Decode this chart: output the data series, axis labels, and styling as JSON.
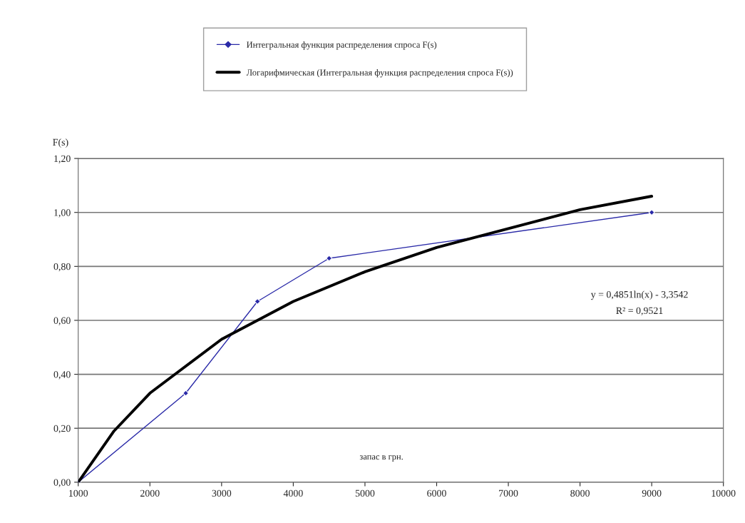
{
  "chart_data": {
    "type": "line",
    "ylabel": "F(s)",
    "xlabel": "запас в грн.",
    "series": [
      {
        "name": "Интегральная функция распределения спроса F(s)",
        "color": "#2a2aa8",
        "marker": "diamond",
        "x": [
          1000,
          2500,
          3500,
          4500,
          9000
        ],
        "values": [
          0,
          0.33,
          0.67,
          0.83,
          1.0
        ]
      },
      {
        "name": "Логарифмическая (Интегральная функция распределения спроса F(s))",
        "color": "#000000",
        "marker": "none",
        "x": [
          1000,
          1500,
          2000,
          3000,
          4000,
          5000,
          6000,
          7000,
          8000,
          9000
        ],
        "values": [
          0,
          0.19,
          0.33,
          0.53,
          0.67,
          0.78,
          0.87,
          0.94,
          1.01,
          1.06
        ]
      }
    ],
    "xlim": [
      1000,
      10000
    ],
    "xticks": [
      1000,
      2000,
      3000,
      4000,
      5000,
      6000,
      7000,
      8000,
      9000,
      10000
    ],
    "ylim": [
      0,
      1.2
    ],
    "yticks": [
      {
        "value": 0,
        "label": "0,00"
      },
      {
        "value": 0.2,
        "label": "0,20"
      },
      {
        "value": 0.4,
        "label": "0,40"
      },
      {
        "value": 0.6,
        "label": "0,60"
      },
      {
        "value": 0.8,
        "label": "0,80"
      },
      {
        "value": 1.0,
        "label": "1,00"
      },
      {
        "value": 1.2,
        "label": "1,20"
      }
    ],
    "annotations": [
      "y = 0,4851ln(x) - 3,3542",
      "R² = 0,9521"
    ],
    "grid": "y",
    "legend": "top"
  }
}
